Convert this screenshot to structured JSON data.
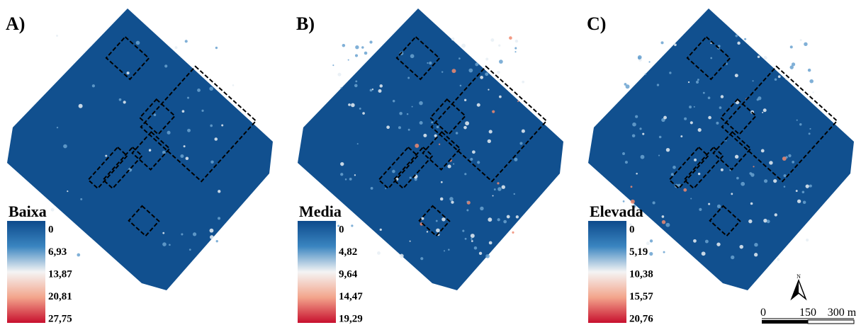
{
  "panels": [
    {
      "label": "A)",
      "legend": {
        "title": "Baixa",
        "ticks": [
          "0",
          "6,93",
          "13,87",
          "20,81",
          "27,75"
        ]
      }
    },
    {
      "label": "B)",
      "legend": {
        "title": "Media",
        "ticks": [
          "0",
          "4,82",
          "9,64",
          "14,47",
          "19,29"
        ]
      }
    },
    {
      "label": "C)",
      "legend": {
        "title": "Elevada",
        "ticks": [
          "0",
          "5,19",
          "10,38",
          "15,57",
          "20,76"
        ]
      }
    }
  ],
  "scale_bar": {
    "labels": [
      "0",
      "150",
      "300 m"
    ]
  },
  "north_arrow": "N"
}
